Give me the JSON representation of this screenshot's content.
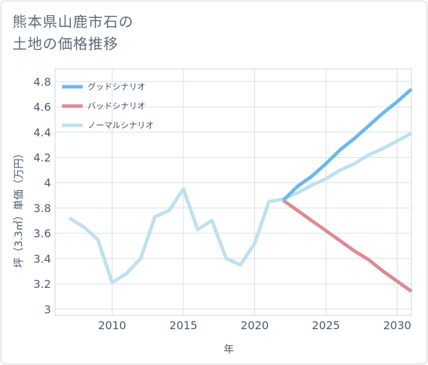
{
  "title": {
    "line1": "熊本県山鹿市石の",
    "line2": "土地の価格推移"
  },
  "chart_data": {
    "type": "line",
    "title": "熊本県山鹿市石の土地の価格推移",
    "xlabel": "年",
    "ylabel": "坪（3.3㎡）単価（万円）",
    "xlim": [
      2006,
      2031
    ],
    "ylim": [
      2.95,
      4.9
    ],
    "xticks": [
      {
        "value": 2010,
        "label": "2010"
      },
      {
        "value": 2015,
        "label": "2015"
      },
      {
        "value": 2020,
        "label": "2020"
      },
      {
        "value": 2025,
        "label": "2025"
      },
      {
        "value": 2030,
        "label": "2030"
      }
    ],
    "yticks": [
      {
        "value": 3,
        "label": "3"
      },
      {
        "value": 3.2,
        "label": "3.2"
      },
      {
        "value": 3.4,
        "label": "3.4"
      },
      {
        "value": 3.6,
        "label": "3.6"
      },
      {
        "value": 3.8,
        "label": "3.8"
      },
      {
        "value": 4,
        "label": "4"
      },
      {
        "value": 4.2,
        "label": "4.2"
      },
      {
        "value": 4.4,
        "label": "4.4"
      },
      {
        "value": 4.6,
        "label": "4.6"
      },
      {
        "value": 4.8,
        "label": "4.8"
      }
    ],
    "grid": true,
    "legend_position": "top-left",
    "series": [
      {
        "name": "グッドシナリオ",
        "color": "#6bb8ee",
        "x": [
          2022,
          2023,
          2024,
          2025,
          2026,
          2027,
          2028,
          2029,
          2030,
          2031
        ],
        "y": [
          3.86,
          3.97,
          4.05,
          4.15,
          4.26,
          4.35,
          4.45,
          4.55,
          4.64,
          4.74
        ]
      },
      {
        "name": "バッドシナリオ",
        "color": "#dc8a95",
        "x": [
          2022,
          2023,
          2024,
          2025,
          2026,
          2027,
          2028,
          2029,
          2030,
          2031
        ],
        "y": [
          3.86,
          3.78,
          3.7,
          3.62,
          3.54,
          3.46,
          3.39,
          3.3,
          3.22,
          3.14
        ]
      },
      {
        "name": "ノーマルシナリオ",
        "color": "#bfe0ee",
        "x": [
          2007,
          2008,
          2009,
          2010,
          2011,
          2012,
          2013,
          2014,
          2015,
          2016,
          2017,
          2018,
          2019,
          2020,
          2021,
          2022,
          2023,
          2024,
          2025,
          2026,
          2027,
          2028,
          2029,
          2030,
          2031
        ],
        "y": [
          3.72,
          3.65,
          3.55,
          3.21,
          3.28,
          3.4,
          3.73,
          3.78,
          3.95,
          3.63,
          3.7,
          3.4,
          3.35,
          3.52,
          3.85,
          3.87,
          3.92,
          3.98,
          4.03,
          4.1,
          4.15,
          4.22,
          4.27,
          4.33,
          4.39
        ]
      }
    ]
  }
}
